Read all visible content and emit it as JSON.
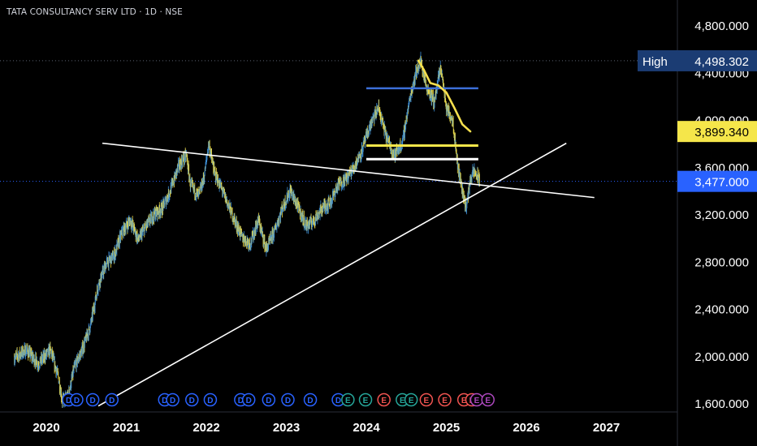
{
  "header": {
    "title": "TATA CONSULTANCY SERV LTD · 1D · NSE"
  },
  "colors": {
    "background": "#000000",
    "candle_up": "#3d8fd6",
    "candle_down": "#e8d84a",
    "trend_line": "#ffffff",
    "ma_line": "#f5df4d",
    "resistance_blue": "#3c6fd9",
    "zone_yellow": "#f5e64a",
    "zone_white": "#ffffff",
    "axis_text": "#ffffff",
    "high_label_bg": "#1b3c73",
    "last_price_bg": "#2962ff",
    "ma_label_bg": "#f5e64a"
  },
  "chart_data": {
    "type": "candlestick",
    "symbol": "TATA CONSULTANCY SERV LTD",
    "interval": "1D",
    "exchange": "NSE",
    "x_ticks": [
      "2020",
      "2021",
      "2022",
      "2023",
      "2024",
      "2025",
      "2026",
      "2027"
    ],
    "y_ticks": [
      "4,800.000",
      "4,400.000",
      "4,000.000",
      "3,600.000",
      "3,200.000",
      "2,800.000",
      "2,400.000",
      "2,000.000",
      "1,600.000"
    ],
    "y_tick_values": [
      4800,
      4400,
      4000,
      3600,
      3200,
      2800,
      2400,
      2000,
      1600
    ],
    "xlim": [
      2019.6,
      2027.9
    ],
    "ylim": [
      1560,
      5000
    ],
    "price_path": [
      [
        2019.6,
        1980
      ],
      [
        2019.75,
        2050
      ],
      [
        2019.9,
        1930
      ],
      [
        2020.05,
        2050
      ],
      [
        2020.15,
        1820
      ],
      [
        2020.2,
        1620
      ],
      [
        2020.27,
        1650
      ],
      [
        2020.35,
        1900
      ],
      [
        2020.45,
        2050
      ],
      [
        2020.55,
        2250
      ],
      [
        2020.65,
        2600
      ],
      [
        2020.75,
        2780
      ],
      [
        2020.85,
        2850
      ],
      [
        2020.95,
        3050
      ],
      [
        2021.05,
        3150
      ],
      [
        2021.15,
        2980
      ],
      [
        2021.25,
        3100
      ],
      [
        2021.35,
        3200
      ],
      [
        2021.45,
        3250
      ],
      [
        2021.55,
        3400
      ],
      [
        2021.65,
        3600
      ],
      [
        2021.75,
        3700
      ],
      [
        2021.8,
        3450
      ],
      [
        2021.9,
        3350
      ],
      [
        2021.97,
        3500
      ],
      [
        2022.03,
        3800
      ],
      [
        2022.1,
        3550
      ],
      [
        2022.2,
        3400
      ],
      [
        2022.35,
        3150
      ],
      [
        2022.45,
        3000
      ],
      [
        2022.55,
        2950
      ],
      [
        2022.65,
        3150
      ],
      [
        2022.75,
        2900
      ],
      [
        2022.85,
        3050
      ],
      [
        2022.95,
        3250
      ],
      [
        2023.05,
        3400
      ],
      [
        2023.15,
        3250
      ],
      [
        2023.25,
        3100
      ],
      [
        2023.35,
        3150
      ],
      [
        2023.45,
        3250
      ],
      [
        2023.55,
        3300
      ],
      [
        2023.65,
        3450
      ],
      [
        2023.75,
        3500
      ],
      [
        2023.85,
        3600
      ],
      [
        2023.95,
        3750
      ],
      [
        2024.05,
        3950
      ],
      [
        2024.15,
        4100
      ],
      [
        2024.25,
        3850
      ],
      [
        2024.35,
        3700
      ],
      [
        2024.45,
        3800
      ],
      [
        2024.55,
        4200
      ],
      [
        2024.62,
        4400
      ],
      [
        2024.68,
        4500
      ],
      [
        2024.75,
        4280
      ],
      [
        2024.85,
        4150
      ],
      [
        2024.93,
        4450
      ],
      [
        2025.0,
        4100
      ],
      [
        2025.08,
        4000
      ],
      [
        2025.14,
        3620
      ],
      [
        2025.2,
        3400
      ],
      [
        2025.25,
        3250
      ],
      [
        2025.3,
        3500
      ],
      [
        2025.35,
        3560
      ],
      [
        2025.42,
        3477
      ]
    ],
    "last_price": 3477.0,
    "last_price_label": "3,477.000",
    "high_label": "High",
    "high_value": 4498.302,
    "high_value_label": "4,498.302",
    "ma_value": 3899.34,
    "ma_value_label": "3,899.340",
    "moving_average": [
      [
        2024.65,
        4500
      ],
      [
        2024.72,
        4420
      ],
      [
        2024.8,
        4310
      ],
      [
        2024.9,
        4290
      ],
      [
        2025.0,
        4230
      ],
      [
        2025.1,
        4100
      ],
      [
        2025.2,
        3960
      ],
      [
        2025.3,
        3900
      ]
    ],
    "trend_lines": [
      {
        "from": [
          2020.7,
          3800
        ],
        "to": [
          2026.85,
          3340
        ],
        "color": "#ffffff"
      },
      {
        "from": [
          2020.65,
          1575
        ],
        "to": [
          2026.5,
          3800
        ],
        "color": "#ffffff"
      }
    ],
    "horizontal_levels": [
      {
        "from": 2024.0,
        "to": 2025.4,
        "value": 4265,
        "color": "#3c6fd9"
      },
      {
        "from": 2024.0,
        "to": 2025.4,
        "value": 3780,
        "color": "#f5e64a"
      },
      {
        "from": 2024.0,
        "to": 2025.4,
        "value": 3665,
        "color": "#ffffff"
      }
    ],
    "event_markers": [
      {
        "x": 2020.28,
        "label": "D",
        "kind": "dividend"
      },
      {
        "x": 2020.38,
        "label": "D",
        "kind": "dividend"
      },
      {
        "x": 2020.58,
        "label": "D",
        "kind": "dividend"
      },
      {
        "x": 2020.82,
        "label": "D",
        "kind": "dividend"
      },
      {
        "x": 2021.48,
        "label": "D",
        "kind": "dividend"
      },
      {
        "x": 2021.58,
        "label": "D",
        "kind": "dividend"
      },
      {
        "x": 2021.82,
        "label": "D",
        "kind": "dividend"
      },
      {
        "x": 2022.05,
        "label": "D",
        "kind": "dividend"
      },
      {
        "x": 2022.43,
        "label": "D",
        "kind": "dividend"
      },
      {
        "x": 2022.53,
        "label": "D",
        "kind": "dividend"
      },
      {
        "x": 2022.78,
        "label": "D",
        "kind": "dividend"
      },
      {
        "x": 2023.02,
        "label": "D",
        "kind": "dividend"
      },
      {
        "x": 2023.3,
        "label": "D",
        "kind": "dividend"
      },
      {
        "x": 2023.65,
        "label": "D",
        "kind": "dividend"
      },
      {
        "x": 2023.77,
        "label": "E",
        "kind": "earnings_positive"
      },
      {
        "x": 2023.99,
        "label": "E",
        "kind": "earnings_positive"
      },
      {
        "x": 2024.22,
        "label": "E",
        "kind": "earnings_negative"
      },
      {
        "x": 2024.45,
        "label": "E",
        "kind": "earnings_positive"
      },
      {
        "x": 2024.56,
        "label": "E",
        "kind": "earnings_positive"
      },
      {
        "x": 2024.75,
        "label": "E",
        "kind": "earnings_negative"
      },
      {
        "x": 2024.98,
        "label": "E",
        "kind": "earnings_negative"
      },
      {
        "x": 2025.22,
        "label": "E",
        "kind": "earnings_negative"
      },
      {
        "x": 2025.32,
        "label": "E",
        "kind": "earnings_negative"
      },
      {
        "x": 2025.38,
        "label": "E",
        "kind": "earnings_upcoming"
      },
      {
        "x": 2025.52,
        "label": "E",
        "kind": "earnings_upcoming"
      }
    ]
  }
}
